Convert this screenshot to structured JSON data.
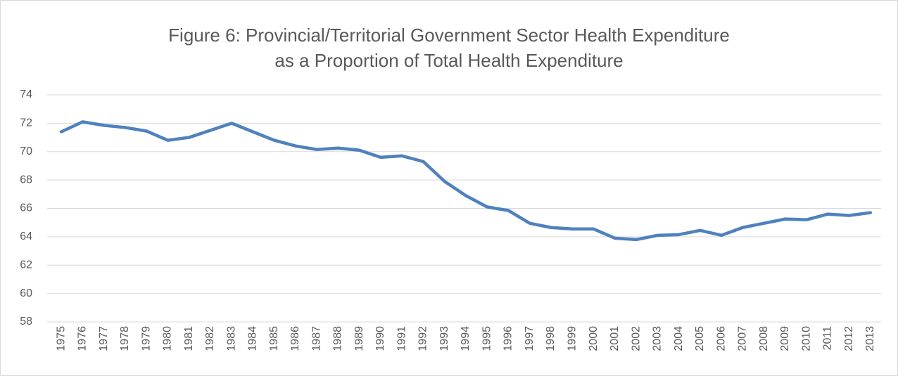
{
  "chart_data": {
    "type": "line",
    "title": "Figure 6: Provincial/Territorial Government Sector Health Expenditure as a Proportion of Total Health Expenditure",
    "categories": [
      "1975",
      "1976",
      "1977",
      "1978",
      "1979",
      "1980",
      "1981",
      "1982",
      "1983",
      "1984",
      "1985",
      "1986",
      "1987",
      "1988",
      "1989",
      "1990",
      "1991",
      "1992",
      "1993",
      "1994",
      "1995",
      "1996",
      "1997",
      "1998",
      "1999",
      "2000",
      "2001",
      "2002",
      "2003",
      "2004",
      "2005",
      "2006",
      "2007",
      "2008",
      "2009",
      "2010",
      "2011",
      "2012",
      "2013"
    ],
    "series": [
      {
        "color": "#4f81bd",
        "values": [
          71.4,
          72.1,
          71.85,
          71.7,
          71.45,
          70.8,
          71.0,
          71.5,
          72.0,
          71.4,
          70.8,
          70.4,
          70.15,
          70.25,
          70.1,
          69.6,
          69.7,
          69.3,
          67.9,
          66.9,
          66.1,
          65.85,
          64.95,
          64.65,
          64.55,
          64.55,
          63.9,
          63.8,
          64.1,
          64.15,
          64.45,
          64.1,
          64.65,
          64.95,
          65.25,
          65.2,
          65.6,
          65.5,
          65.7
        ]
      }
    ],
    "ylim": [
      58,
      74
    ],
    "yticks": [
      58,
      60,
      62,
      64,
      66,
      68,
      70,
      72,
      74
    ],
    "grid": true
  }
}
